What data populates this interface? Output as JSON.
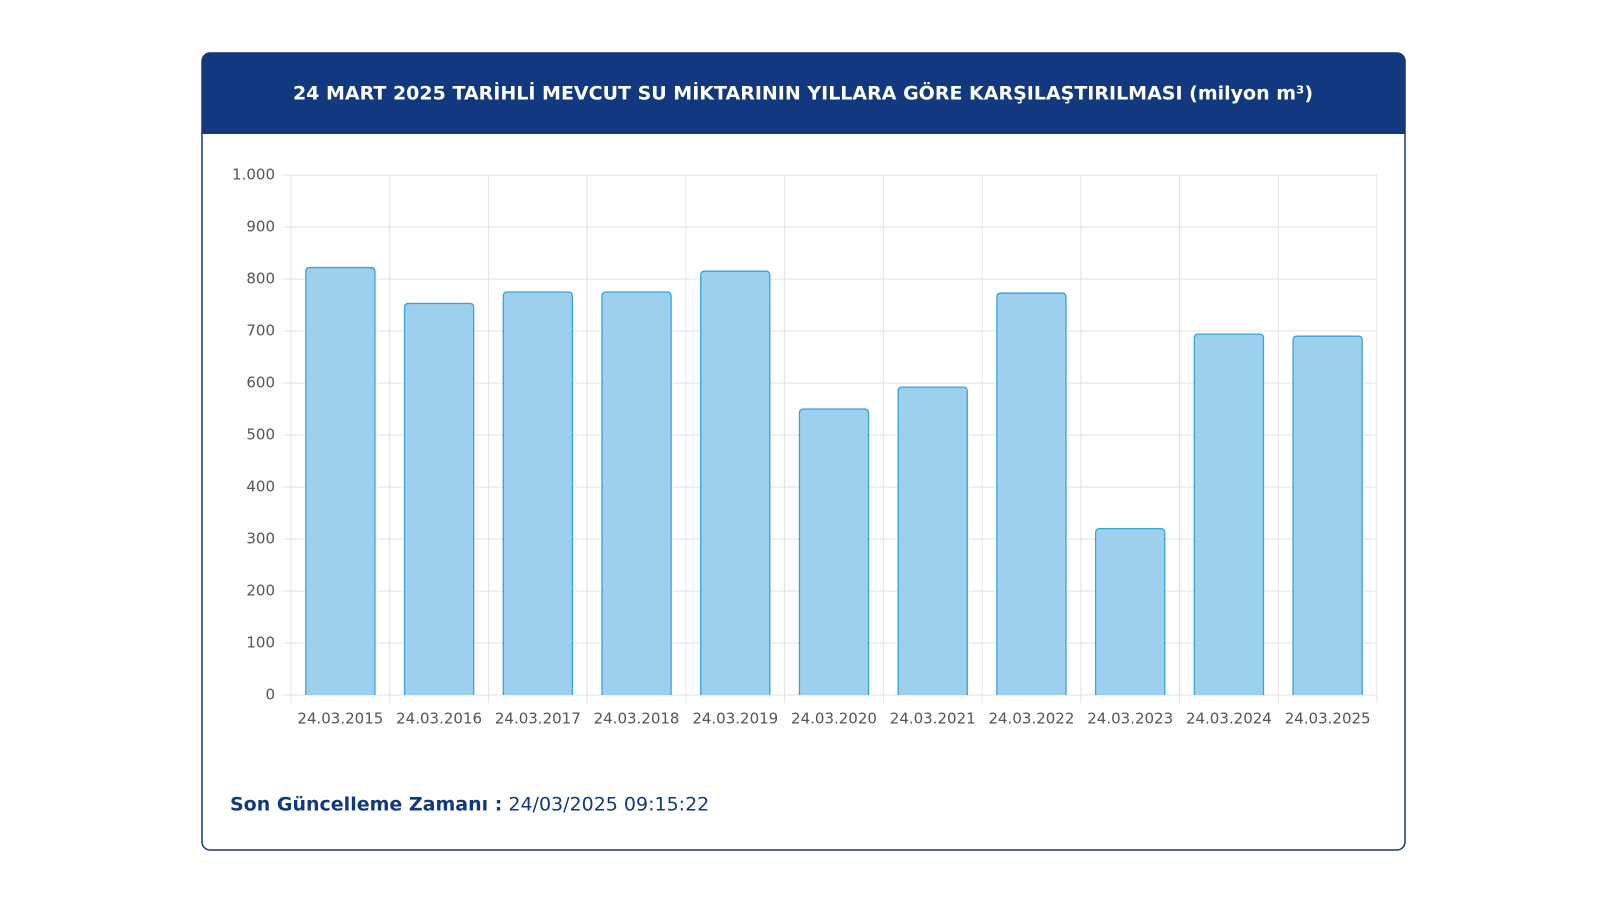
{
  "chart_data": {
    "type": "bar",
    "title": "24 MART 2025 TARİHLİ MEVCUT SU MİKTARININ YILLARA GÖRE KARŞILAŞTIRILMASI (milyon m³)",
    "categories": [
      "24.03.2015",
      "24.03.2016",
      "24.03.2017",
      "24.03.2018",
      "24.03.2019",
      "24.03.2020",
      "24.03.2021",
      "24.03.2022",
      "24.03.2023",
      "24.03.2024",
      "24.03.2025"
    ],
    "values": [
      822,
      753,
      775,
      775,
      815,
      550,
      592,
      773,
      320,
      694,
      690
    ],
    "color": "#9dd0ee",
    "ylim": [
      0,
      1000
    ],
    "yticks": [
      0,
      100,
      200,
      300,
      400,
      500,
      600,
      700,
      800,
      900,
      {
        "value": 1000,
        "label": "1.000"
      }
    ],
    "grid": true
  },
  "footer": {
    "label": "Son Güncelleme Zamanı :",
    "value": "24/03/2025 09:15:22"
  }
}
